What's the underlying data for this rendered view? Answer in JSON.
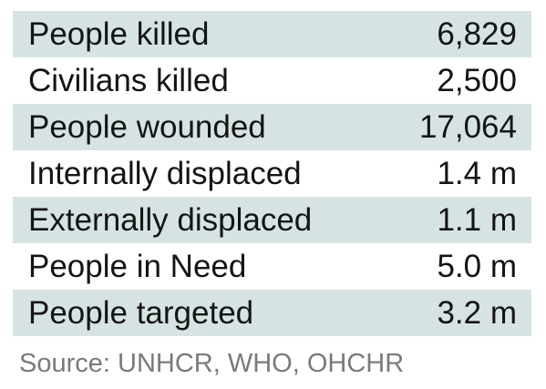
{
  "stats": [
    {
      "label": "People killed",
      "value": "6,829",
      "shaded": true
    },
    {
      "label": "Civilians killed",
      "value": "2,500",
      "shaded": false
    },
    {
      "label": "People wounded",
      "value": "17,064",
      "shaded": true
    },
    {
      "label": "Internally displaced",
      "value": "1.4 m",
      "shaded": false
    },
    {
      "label": "Externally displaced",
      "value": "1.1 m",
      "shaded": true
    },
    {
      "label": "People in Need",
      "value": "5.0 m",
      "shaded": false
    },
    {
      "label": "People targeted",
      "value": "3.2 m",
      "shaded": true
    }
  ],
  "source": "Source: UNHCR, WHO, OHCHR",
  "colors": {
    "row_shade": "#d7e3e3",
    "text": "#141414",
    "source_text": "#7a7a7a"
  }
}
